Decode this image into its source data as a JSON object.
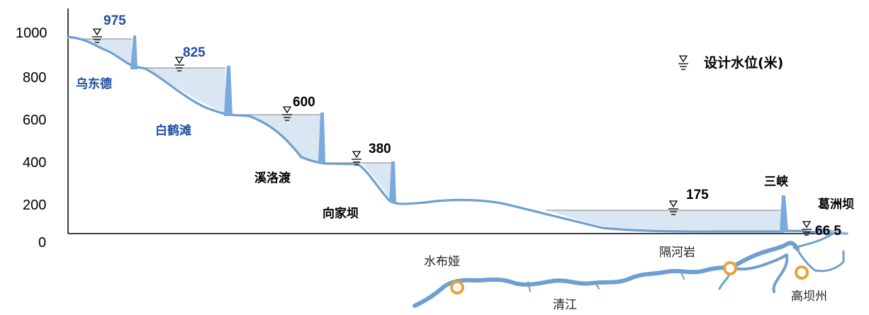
{
  "y_axis": {
    "ticks": [
      "0",
      "200",
      "400",
      "600",
      "800",
      "1000"
    ]
  },
  "legend": {
    "label": "设计水位(米)",
    "icon": "water-level-icon"
  },
  "colors": {
    "water": "#dbe6f3",
    "profile": "#6f9fd0",
    "dam": "#7aa9dc",
    "blue_text": "#1f4fa3",
    "black_text": "#000000",
    "marker": "#e6a23c"
  },
  "stations": [
    {
      "id": "wudongde",
      "name": "乌东德",
      "level": "975",
      "name_color": "blue",
      "level_color": "blue"
    },
    {
      "id": "baihetan",
      "name": "白鹤滩",
      "level": "825",
      "name_color": "blue",
      "level_color": "blue"
    },
    {
      "id": "xiluodu",
      "name": "溪洛渡",
      "level": "600",
      "name_color": "black",
      "level_color": "black"
    },
    {
      "id": "xiangjiaba",
      "name": "向家坝",
      "level": "380",
      "name_color": "black",
      "level_color": "black"
    },
    {
      "id": "sanxia",
      "name": "三峡",
      "level": "175",
      "name_color": "black",
      "level_color": "black"
    },
    {
      "id": "gezhouba",
      "name": "葛洲坝",
      "level": "66.5",
      "name_color": "black",
      "level_color": "black"
    }
  ],
  "map": {
    "river_label": "清江",
    "places": [
      "水布娅",
      "隔河岩",
      "高坝州"
    ]
  }
}
